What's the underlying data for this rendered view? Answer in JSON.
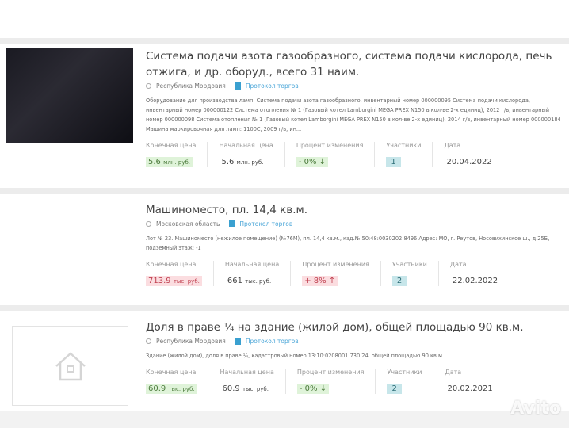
{
  "labels": {
    "final": "Конечная цена",
    "start": "Начальная цена",
    "percent": "Процент изменения",
    "participants": "Участники",
    "date": "Дата",
    "protocol": "Протокол торгов"
  },
  "lots": [
    {
      "title": "Система подачи азота газообразного, система подачи кислорода, печь отжига, и др. оборуд., всего 31 наим.",
      "region": "Республика Мордовия",
      "description": "Оборудование для производства ламп: Система подачи азота газообразного, инвентарный номер 000000095 Система подачи кислорода, инвентарный номер 000000122 Система отопления № 1 (Газовый котел Lamborgini MEGA PREX N150 в кол-ве 2-х единиц), 2012 г/в, инвентарный номер 000000098 Система отопления № 1 (Газовый котел Lamborgini MEGA PREX N150 в кол-ве 2-х единиц), 2014 г/в, инвентарный номер 000000184 Машина маркировочная для ламп: 1100С, 2009 г/в, ин...",
      "final_num": "5.6",
      "final_unit": "млн. руб.",
      "start_num": "5.6",
      "start_unit": "млн. руб.",
      "percent": "- 0% ↓",
      "participants": "1",
      "date": "20.04.2022",
      "trend": "down"
    },
    {
      "title": "Машиноместо, пл. 14,4 кв.м.",
      "region": "Московская область",
      "description": "Лот № 23. Машиноместо (нежилое помещение) (№76М), пл. 14,4 кв.м., кад.№ 50:48:0030202:8496 Адрес: МО, г. Реутов, Носовихинское ш., д.25Б, подземный этаж: -1",
      "final_num": "713.9",
      "final_unit": "тыс. руб.",
      "start_num": "661",
      "start_unit": "тыс. руб.",
      "percent": "+ 8% ↑",
      "participants": "2",
      "date": "22.02.2022",
      "trend": "up"
    },
    {
      "title": "Доля в праве ¼ на здание (жилой дом), общей площадью 90 кв.м.",
      "region": "Республика Мордовия",
      "description": "Здание (жилой дом), доля в праве ¼, кадастровый номер 13:10:0208001:730 24, общей площадью 90 кв.м.",
      "final_num": "60.9",
      "final_unit": "тыс. руб.",
      "start_num": "60.9",
      "start_unit": "тыс. руб.",
      "percent": "- 0% ↓",
      "participants": "2",
      "date": "20.02.2021",
      "trend": "down"
    }
  ],
  "watermark": "Avito"
}
